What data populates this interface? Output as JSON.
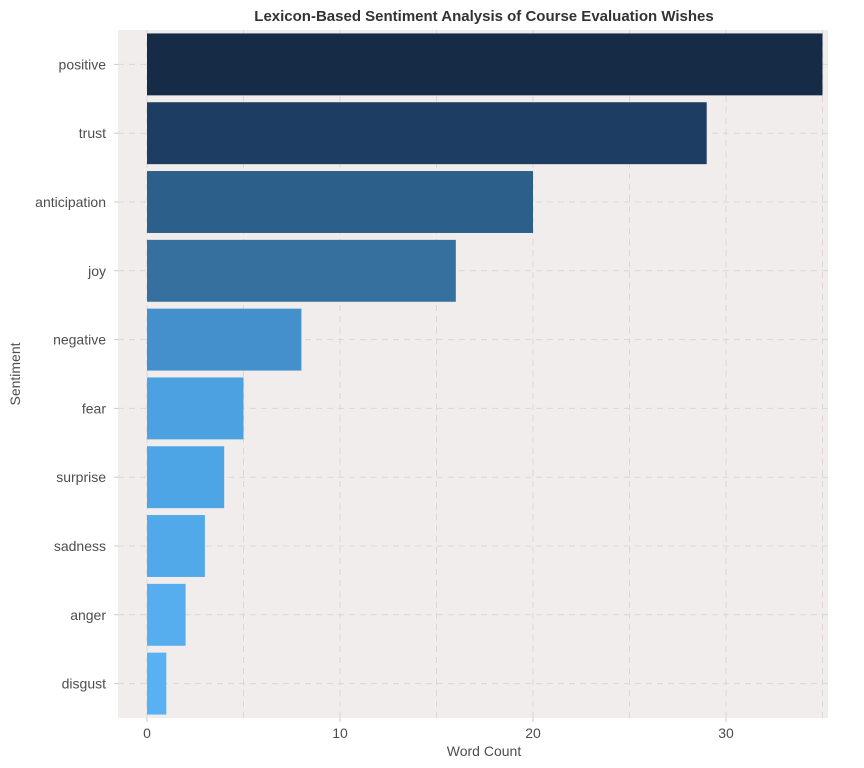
{
  "chart_data": {
    "type": "bar",
    "orientation": "horizontal",
    "title": "Lexicon-Based Sentiment Analysis of Course Evaluation Wishes",
    "xlabel": "Word Count",
    "ylabel": "Sentiment",
    "categories": [
      "positive",
      "trust",
      "anticipation",
      "joy",
      "negative",
      "fear",
      "surprise",
      "sadness",
      "anger",
      "disgust"
    ],
    "values": [
      35,
      29,
      20,
      16,
      8,
      5,
      4,
      3,
      2,
      1
    ],
    "bar_colors": [
      "#162c46",
      "#1d3d63",
      "#2c5f8a",
      "#35709f",
      "#4390cc",
      "#4ca2e0",
      "#4ea5e5",
      "#52a9ea",
      "#56aeef",
      "#58b1f2"
    ],
    "xlim": [
      0,
      36
    ],
    "xticks": [
      0,
      10,
      20,
      30
    ],
    "grid": true,
    "legend": "none",
    "panel_background": "#f1eded"
  }
}
